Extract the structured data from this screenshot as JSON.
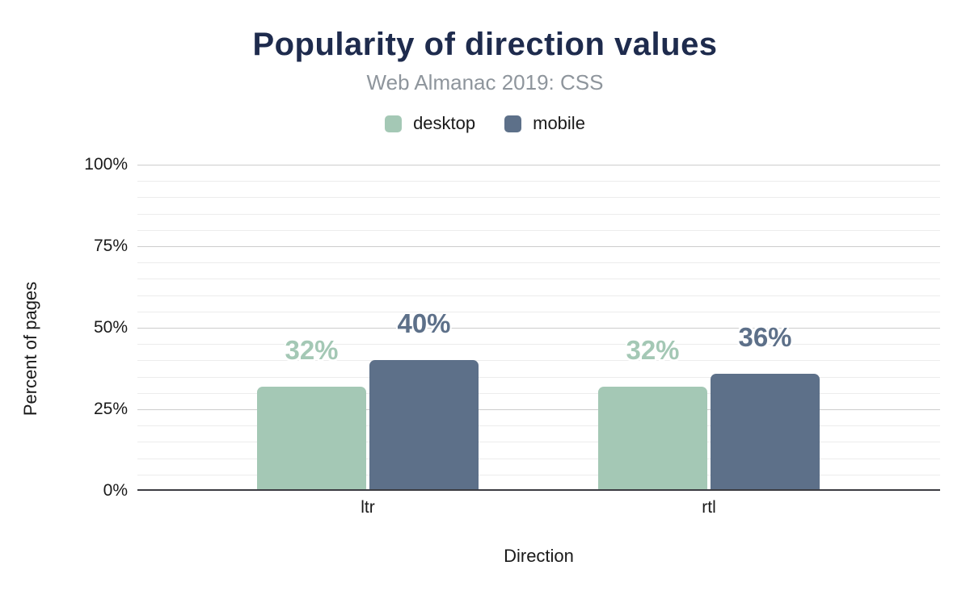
{
  "chart_data": {
    "type": "bar",
    "title": "Popularity of direction values",
    "subtitle": "Web Almanac 2019: CSS",
    "xlabel": "Direction",
    "ylabel": "Percent of pages",
    "categories": [
      "ltr",
      "rtl"
    ],
    "series": [
      {
        "name": "desktop",
        "color": "#a4c8b5",
        "values": [
          32,
          32
        ],
        "labels": [
          "32%",
          "32%"
        ]
      },
      {
        "name": "mobile",
        "color": "#5d7089",
        "values": [
          40,
          36
        ],
        "labels": [
          "40%",
          "36%"
        ]
      }
    ],
    "ylim": [
      0,
      100
    ],
    "yticks": [
      {
        "value": 0,
        "label": "0%"
      },
      {
        "value": 25,
        "label": "25%"
      },
      {
        "value": 50,
        "label": "50%"
      },
      {
        "value": 75,
        "label": "75%"
      },
      {
        "value": 100,
        "label": "100%"
      }
    ],
    "grid": {
      "minor_step": 5,
      "major_step": 25,
      "minor_color": "#ececec",
      "major_color": "#cdcdcd"
    },
    "legend_position": "top"
  },
  "colors": {
    "title": "#1e2b4d",
    "subtitle": "#8e959c",
    "axis_text": "#1a1a1a",
    "baseline": "#3c3c42",
    "background": "#ffffff"
  }
}
